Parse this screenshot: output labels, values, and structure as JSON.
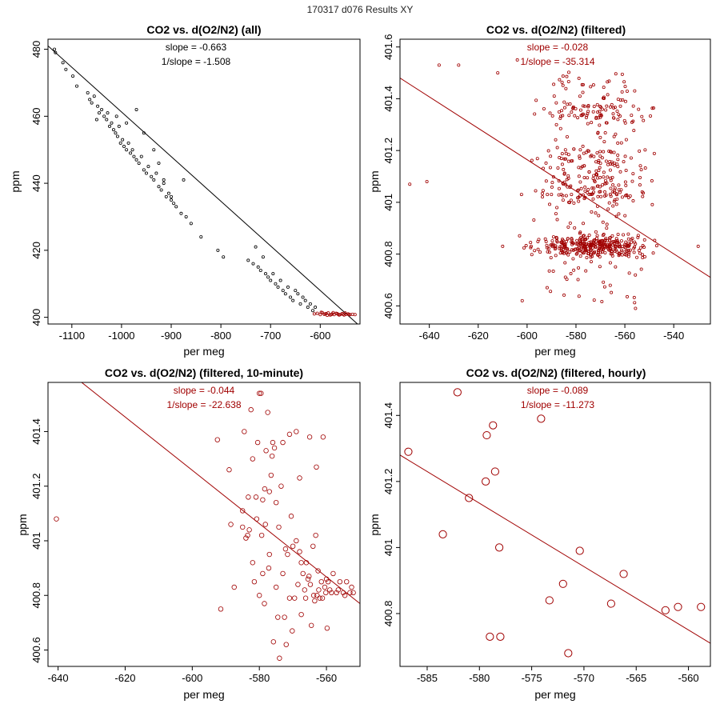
{
  "figure_title": "170317   d076   Results XY",
  "colors": {
    "black": "#000000",
    "red": "#a00000"
  },
  "chart_data": [
    {
      "type": "scatter",
      "title": "CO2 vs. d(O2/N2) (all)",
      "xlabel": "per meg",
      "ylabel": "ppm",
      "xlim": [
        -1148,
        -520
      ],
      "ylim": [
        398,
        483
      ],
      "xticks": [
        -1100,
        -1000,
        -900,
        -800,
        -700,
        -600
      ],
      "yticks": [
        400,
        420,
        440,
        460,
        480
      ],
      "annotations": [
        "slope = -0.663",
        "1/slope = -1.508"
      ],
      "annotation_color": "black",
      "fit_line": {
        "x": [
          -1148,
          -525
        ],
        "y": [
          481.0,
          398.0
        ]
      },
      "fit_color": "black",
      "marker_size": 1.6,
      "series": [
        {
          "name": "all",
          "color": "black",
          "x": [
            -1135,
            -1133,
            -1118,
            -1112,
            -1098,
            -1090,
            -1068,
            -1064,
            -1060,
            -1055,
            -1048,
            -1045,
            -1040,
            -1035,
            -1030,
            -1028,
            -1024,
            -1020,
            -1016,
            -1012,
            -1008,
            -1005,
            -1002,
            -998,
            -995,
            -990,
            -986,
            -982,
            -978,
            -975,
            -970,
            -965,
            -960,
            -955,
            -950,
            -946,
            -940,
            -935,
            -930,
            -925,
            -920,
            -915,
            -910,
            -905,
            -900,
            -895,
            -890,
            -880,
            -870,
            -860,
            -840,
            -806,
            -795,
            -745,
            -735,
            -730,
            -725,
            -720,
            -715,
            -710,
            -705,
            -700,
            -695,
            -690,
            -685,
            -680,
            -675,
            -670,
            -665,
            -660,
            -655,
            -650,
            -645,
            -640,
            -635,
            -630,
            -625,
            -620,
            -615,
            -610,
            -1050,
            -1010,
            -990,
            -970,
            -955,
            -935,
            -925,
            -915,
            -900,
            -875
          ],
          "y": [
            480,
            479,
            476,
            474,
            472,
            469,
            467,
            465,
            464,
            466,
            463,
            461,
            462,
            460,
            459,
            461,
            457,
            458,
            456,
            455,
            454,
            457,
            452,
            453,
            451,
            450,
            452,
            449,
            450,
            448,
            447,
            446,
            448,
            444,
            443,
            445,
            442,
            441,
            443,
            439,
            438,
            440,
            436,
            437,
            435,
            434,
            433,
            431,
            430,
            428,
            424,
            420,
            418,
            417,
            416,
            421,
            415,
            414,
            418,
            413,
            412,
            411,
            413,
            410,
            409,
            411,
            408,
            407,
            409,
            406,
            405,
            408,
            407,
            404,
            406,
            405,
            403,
            404,
            402,
            403,
            459,
            460,
            458,
            462,
            455,
            450,
            446,
            441,
            436,
            441
          ]
        },
        {
          "name": "filtered",
          "color": "red",
          "x": [
            -612,
            -606,
            -600,
            -596,
            -592,
            -588,
            -584,
            -580,
            -576,
            -572,
            -568,
            -564,
            -560,
            -556,
            -552,
            -548,
            -544,
            -540,
            -535,
            -530,
            -598,
            -586,
            -574,
            -562,
            -550,
            -590,
            -578,
            -566,
            -554,
            -542
          ],
          "y": [
            401.0,
            401.2,
            400.8,
            401.4,
            400.9,
            401.1,
            401.3,
            400.7,
            401.0,
            400.8,
            401.2,
            400.9,
            400.8,
            401.1,
            400.7,
            400.9,
            401.0,
            400.8,
            400.9,
            400.8,
            401.5,
            400.6,
            401.4,
            400.7,
            401.3,
            401.0,
            400.8,
            401.1,
            400.9,
            400.8
          ]
        }
      ]
    },
    {
      "type": "scatter",
      "title": "CO2 vs. d(O2/N2) (filtered)",
      "xlabel": "per meg",
      "ylabel": "ppm",
      "xlim": [
        -652,
        -525
      ],
      "ylim": [
        400.53,
        401.63
      ],
      "xticks": [
        -640,
        -620,
        -600,
        -580,
        -560,
        -540
      ],
      "yticks": [
        400.6,
        400.8,
        401.0,
        401.2,
        401.4,
        401.6
      ],
      "annotations": [
        "slope = -0.028",
        "1/slope = -35.314"
      ],
      "annotation_color": "red",
      "fit_line": {
        "x": [
          -652,
          -525
        ],
        "y": [
          401.48,
          400.71
        ]
      },
      "fit_color": "red",
      "marker_size": 1.6,
      "generated": {
        "count": 720,
        "seed": 11,
        "mode": "bands"
      },
      "series": [
        {
          "name": "filtered",
          "color": "red",
          "x": [
            -636,
            -628,
            -648,
            -641,
            -610,
            -612,
            -604,
            -602,
            -530
          ],
          "y": [
            401.53,
            401.53,
            401.07,
            401.08,
            400.83,
            401.5,
            401.55,
            400.62,
            400.83
          ]
        }
      ]
    },
    {
      "type": "scatter",
      "title": "CO2 vs. d(O2/N2) (filtered, 10-minute)",
      "xlabel": "per meg",
      "ylabel": "ppm",
      "xlim": [
        -643,
        -550
      ],
      "ylim": [
        400.54,
        401.58
      ],
      "xticks": [
        -640,
        -620,
        -600,
        -580,
        -560
      ],
      "yticks": [
        400.6,
        400.8,
        401.0,
        401.2,
        401.4
      ],
      "annotations": [
        "slope = -0.044",
        "1/slope = -22.638"
      ],
      "annotation_color": "red",
      "fit_line": {
        "x": [
          -634,
          -550
        ],
        "y": [
          401.59,
          400.77
        ]
      },
      "fit_color": "red",
      "marker_size": 2.8,
      "series": [
        {
          "name": "10-minute",
          "color": "red",
          "x": [
            -640.5,
            -592.5,
            -591.5,
            -589,
            -588.5,
            -587.5,
            -585,
            -585,
            -584.5,
            -584,
            -583.5,
            -583.3,
            -583,
            -582.5,
            -582,
            -582,
            -581.5,
            -581,
            -580.8,
            -580.5,
            -580,
            -580,
            -579.5,
            -579.3,
            -579,
            -579,
            -578.5,
            -578.4,
            -578.2,
            -578,
            -577.5,
            -577.2,
            -577,
            -577,
            -576.5,
            -576.2,
            -576,
            -575.8,
            -575.5,
            -575,
            -575,
            -574.5,
            -574.2,
            -574,
            -573.5,
            -573,
            -573,
            -572.5,
            -572.2,
            -572,
            -571.6,
            -571,
            -571,
            -570.5,
            -570.2,
            -570,
            -569.5,
            -569,
            -569,
            -568.5,
            -568,
            -568,
            -567.5,
            -567.5,
            -567,
            -566.5,
            -566.2,
            -566,
            -565.5,
            -565.2,
            -565,
            -564.8,
            -564.5,
            -564,
            -563.8,
            -563.5,
            -563.2,
            -563,
            -562.8,
            -562.5,
            -562.3,
            -562,
            -561.5,
            -561.2,
            -561,
            -560.5,
            -560.2,
            -560,
            -559.8,
            -559.5,
            -559,
            -558.5,
            -558,
            -557,
            -556.5,
            -556,
            -555,
            -554.5,
            -554,
            -553,
            -552.5,
            -552
          ],
          "y": [
            401.08,
            401.37,
            400.75,
            401.26,
            401.06,
            400.83,
            401.05,
            401.11,
            401.4,
            401.01,
            401.02,
            401.16,
            401.04,
            401.48,
            400.92,
            401.3,
            400.85,
            401.16,
            401.08,
            401.36,
            400.8,
            401.54,
            401.54,
            401.02,
            401.15,
            400.88,
            400.77,
            401.19,
            401.06,
            401.33,
            401.47,
            400.9,
            401.18,
            400.95,
            401.24,
            401.31,
            401.36,
            400.63,
            401.34,
            400.83,
            401.14,
            400.72,
            401.05,
            400.57,
            401.2,
            400.88,
            401.36,
            400.72,
            400.97,
            400.62,
            400.95,
            401.39,
            400.79,
            401.09,
            400.67,
            400.98,
            400.79,
            401.4,
            401.0,
            400.84,
            400.96,
            401.23,
            400.73,
            400.92,
            400.88,
            400.82,
            400.79,
            400.92,
            400.86,
            400.87,
            401.38,
            400.84,
            400.69,
            400.98,
            400.8,
            400.78,
            401.02,
            401.27,
            400.8,
            400.89,
            400.82,
            400.79,
            400.85,
            400.79,
            401.38,
            400.83,
            400.81,
            400.86,
            400.68,
            400.85,
            400.82,
            400.81,
            400.88,
            400.81,
            400.82,
            400.85,
            400.81,
            400.8,
            400.85,
            400.81,
            400.83,
            400.81
          ]
        }
      ]
    },
    {
      "type": "scatter",
      "title": "CO2 vs. d(O2/N2) (filtered, hourly)",
      "xlabel": "per meg",
      "ylabel": "ppm",
      "xlim": [
        -587.6,
        -557.9
      ],
      "ylim": [
        400.64,
        401.5
      ],
      "xticks": [
        -585,
        -580,
        -575,
        -570,
        -565,
        -560
      ],
      "yticks": [
        400.8,
        401.0,
        401.2,
        401.4
      ],
      "annotations": [
        "slope = -0.089",
        "1/slope = -11.273"
      ],
      "annotation_color": "red",
      "fit_line": {
        "x": [
          -587.6,
          -557.9
        ],
        "y": [
          401.28,
          400.71
        ]
      },
      "fit_color": "red",
      "marker_size": 4.6,
      "series": [
        {
          "name": "hourly",
          "color": "red",
          "x": [
            -586.8,
            -583.5,
            -582.1,
            -581.0,
            -579.4,
            -579.3,
            -579.0,
            -578.7,
            -578.5,
            -578.1,
            -578.0,
            -574.1,
            -573.3,
            -572.0,
            -571.5,
            -570.4,
            -567.4,
            -566.2,
            -562.2,
            -561.0,
            -558.8
          ],
          "y": [
            401.29,
            401.04,
            401.47,
            401.15,
            401.2,
            401.34,
            400.73,
            401.37,
            401.23,
            401.0,
            400.73,
            401.39,
            400.84,
            400.89,
            400.68,
            400.99,
            400.83,
            400.92,
            400.81,
            400.82,
            400.82
          ]
        }
      ]
    }
  ]
}
